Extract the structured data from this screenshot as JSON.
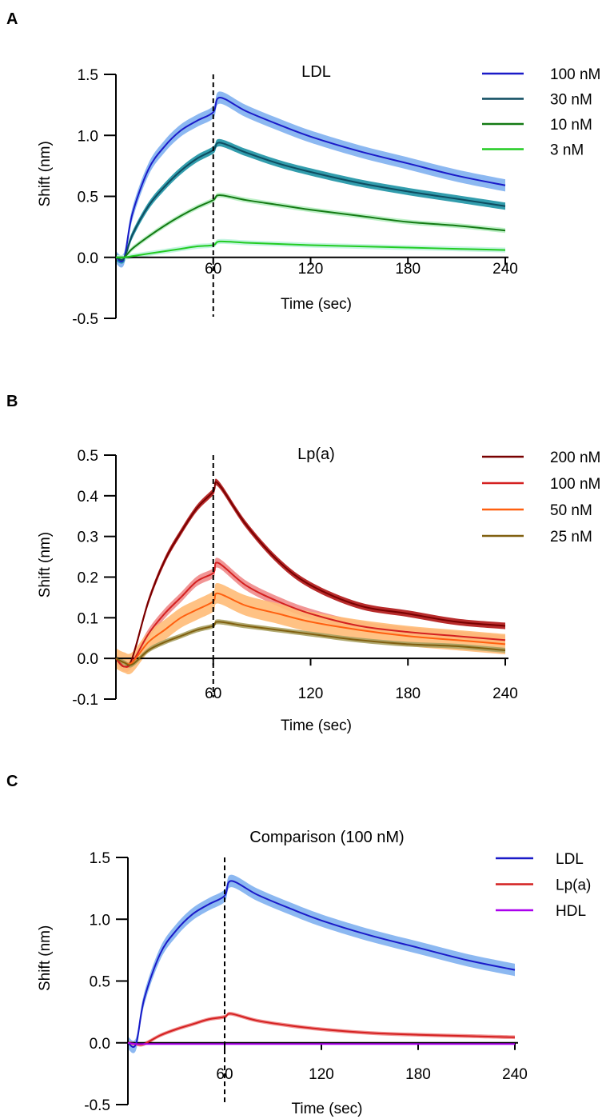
{
  "chart_data": [
    {
      "type": "line",
      "panel_label": "A",
      "title": "LDL",
      "xlabel": "Time (sec)",
      "ylabel": "Shift (nm)",
      "xlim": [
        0,
        240
      ],
      "ylim": [
        -0.5,
        1.5
      ],
      "xticks": [
        60,
        120,
        180,
        240
      ],
      "yticks": [
        -0.5,
        0.0,
        0.5,
        1.0,
        1.5
      ],
      "ytick_labels": [
        "-0.5",
        "0.0",
        "0.5",
        "1.0",
        "1.5"
      ],
      "vline_x": 60,
      "legend_position": "top-right",
      "x": [
        0,
        5,
        10,
        20,
        30,
        40,
        50,
        60,
        64,
        80,
        100,
        120,
        150,
        180,
        210,
        240
      ],
      "series": [
        {
          "name": "100 nM",
          "color": "#1a1ac8",
          "band_color": "#7fb0f0",
          "sd": 0.05,
          "values": [
            0,
            -0.01,
            0.35,
            0.72,
            0.91,
            1.04,
            1.12,
            1.19,
            1.31,
            1.2,
            1.09,
            0.99,
            0.87,
            0.77,
            0.67,
            0.59
          ]
        },
        {
          "name": "30 nM",
          "color": "#0e4c60",
          "band_color": "#1c92a4",
          "sd": 0.03,
          "values": [
            0,
            -0.01,
            0.18,
            0.42,
            0.58,
            0.71,
            0.81,
            0.88,
            0.94,
            0.86,
            0.77,
            0.7,
            0.61,
            0.54,
            0.48,
            0.42
          ]
        },
        {
          "name": "10 nM",
          "color": "#137a13",
          "band_color": "#b6eec0",
          "sd": 0.02,
          "values": [
            0,
            0,
            0.07,
            0.17,
            0.26,
            0.34,
            0.41,
            0.47,
            0.51,
            0.47,
            0.43,
            0.39,
            0.34,
            0.29,
            0.26,
            0.22
          ]
        },
        {
          "name": "3 nM",
          "color": "#22cc22",
          "band_color": "#bff3de",
          "sd": 0.02,
          "values": [
            0,
            0,
            0.01,
            0.03,
            0.05,
            0.07,
            0.09,
            0.1,
            0.13,
            0.12,
            0.11,
            0.1,
            0.09,
            0.08,
            0.07,
            0.06
          ]
        }
      ]
    },
    {
      "type": "line",
      "panel_label": "B",
      "title": "Lp(a)",
      "xlabel": "Time (sec)",
      "ylabel": "Shift (nm)",
      "xlim": [
        0,
        240
      ],
      "ylim": [
        -0.1,
        0.5
      ],
      "xticks": [
        60,
        120,
        180,
        240
      ],
      "yticks": [
        -0.1,
        0.0,
        0.1,
        0.2,
        0.3,
        0.4,
        0.5
      ],
      "ytick_labels": [
        "-0.1",
        "0.0",
        "0.1",
        "0.2",
        "0.3",
        "0.4",
        "0.5"
      ],
      "vline_x": 60,
      "legend_position": "top-right",
      "x": [
        0,
        5,
        10,
        20,
        30,
        40,
        50,
        60,
        63,
        80,
        100,
        120,
        150,
        180,
        210,
        240
      ],
      "series": [
        {
          "name": "200 nM",
          "color": "#780000",
          "band_color": "#b01515",
          "sd": 0.008,
          "values": [
            0,
            -0.02,
            0.0,
            0.14,
            0.24,
            0.31,
            0.37,
            0.41,
            0.43,
            0.33,
            0.24,
            0.18,
            0.13,
            0.11,
            0.09,
            0.08
          ]
        },
        {
          "name": "100 nM",
          "color": "#d42020",
          "band_color": "#f08a8a",
          "sd": 0.012,
          "values": [
            0,
            -0.02,
            -0.01,
            0.06,
            0.11,
            0.15,
            0.19,
            0.21,
            0.235,
            0.18,
            0.14,
            0.11,
            0.08,
            0.065,
            0.055,
            0.045
          ]
        },
        {
          "name": "50 nM",
          "color": "#ff6010",
          "band_color": "#ffbb77",
          "sd": 0.025,
          "values": [
            0,
            -0.01,
            -0.01,
            0.04,
            0.07,
            0.1,
            0.12,
            0.14,
            0.16,
            0.13,
            0.11,
            0.09,
            0.07,
            0.055,
            0.045,
            0.035
          ]
        },
        {
          "name": "25 nM",
          "color": "#806010",
          "band_color": "#a8a060",
          "sd": 0.006,
          "values": [
            0,
            -0.01,
            -0.015,
            0.02,
            0.04,
            0.055,
            0.07,
            0.08,
            0.09,
            0.08,
            0.07,
            0.06,
            0.045,
            0.035,
            0.03,
            0.02
          ]
        }
      ]
    },
    {
      "type": "line",
      "panel_label": "C",
      "title": "Comparison (100 nM)",
      "xlabel": "Time (sec)",
      "ylabel": "Shift (nm)",
      "xlim": [
        0,
        240
      ],
      "ylim": [
        -0.5,
        1.5
      ],
      "xticks": [
        60,
        120,
        180,
        240
      ],
      "yticks": [
        -0.5,
        0.0,
        0.5,
        1.0,
        1.5
      ],
      "ytick_labels": [
        "-0.5",
        "0.0",
        "0.5",
        "1.0",
        "1.5"
      ],
      "vline_x": 60,
      "legend_position": "top-right",
      "x": [
        0,
        5,
        10,
        20,
        30,
        40,
        50,
        60,
        64,
        80,
        100,
        120,
        150,
        180,
        210,
        240
      ],
      "series": [
        {
          "name": "LDL",
          "color": "#1a1ac8",
          "band_color": "#7fb0f0",
          "sd": 0.05,
          "values": [
            0,
            -0.01,
            0.35,
            0.72,
            0.91,
            1.04,
            1.12,
            1.19,
            1.31,
            1.2,
            1.09,
            0.99,
            0.87,
            0.77,
            0.67,
            0.59
          ]
        },
        {
          "name": "Lp(a)",
          "color": "#d42020",
          "band_color": "#f08a8a",
          "sd": 0.015,
          "values": [
            0,
            -0.01,
            -0.01,
            0.06,
            0.11,
            0.15,
            0.19,
            0.21,
            0.235,
            0.18,
            0.14,
            0.11,
            0.08,
            0.065,
            0.055,
            0.045
          ]
        },
        {
          "name": "HDL",
          "color": "#aa00ee",
          "band_color": "#d9a0f5",
          "sd": 0.005,
          "values": [
            0,
            -0.01,
            -0.01,
            -0.01,
            -0.01,
            -0.01,
            -0.01,
            -0.01,
            -0.01,
            -0.01,
            -0.01,
            -0.01,
            -0.01,
            -0.01,
            -0.01,
            -0.01
          ]
        }
      ]
    }
  ]
}
